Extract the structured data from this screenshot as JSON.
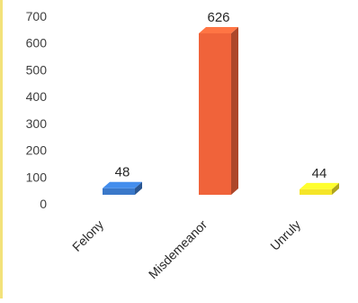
{
  "chart_data": {
    "type": "bar",
    "title": "",
    "xlabel": "",
    "ylabel": "",
    "categories": [
      "Felony",
      "Misdemeanor",
      "Unruly"
    ],
    "values": [
      48,
      626,
      44
    ],
    "data_labels": [
      "48",
      "626",
      "44"
    ],
    "ylim": [
      0,
      700
    ],
    "yticks": [
      0,
      100,
      200,
      300,
      400,
      500,
      600,
      700
    ],
    "ytick_labels": [
      "0",
      "100",
      "200",
      "300",
      "400",
      "500",
      "600",
      "700"
    ],
    "grid": false,
    "legend": "none",
    "style": "3d-bars",
    "colors": [
      "#3a78c9",
      "#f0633a",
      "#f5e528"
    ]
  }
}
